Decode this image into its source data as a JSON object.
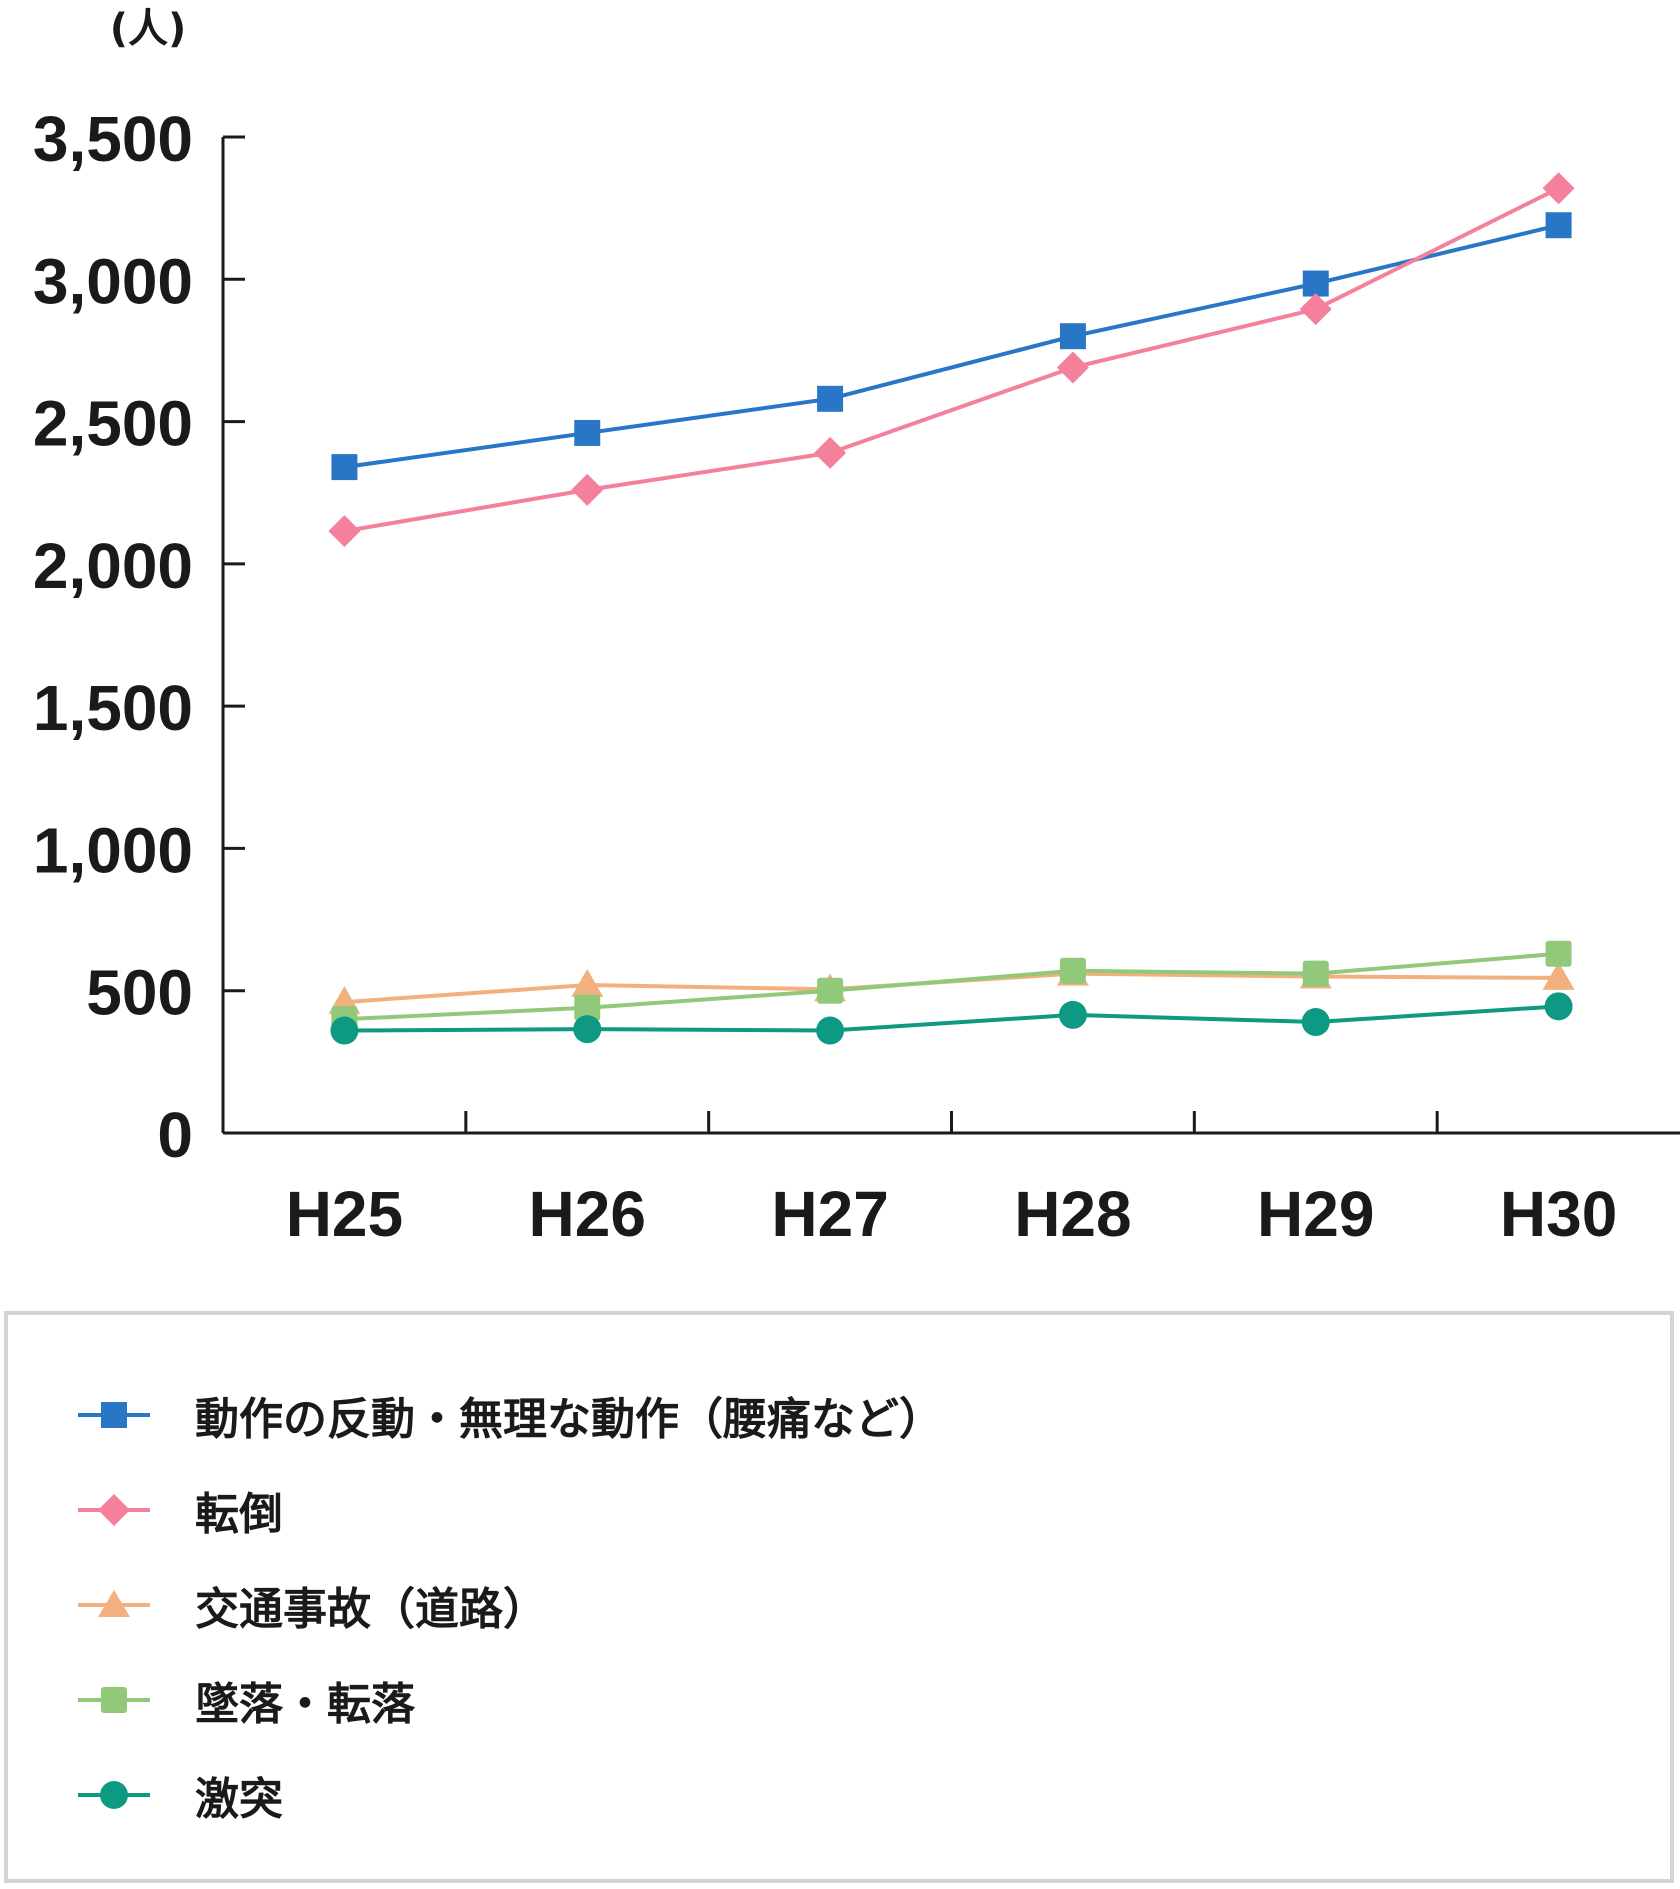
{
  "chart_data": {
    "type": "line",
    "title": "",
    "ylabel": "(人)",
    "xlabel": "",
    "categories": [
      "H25",
      "H26",
      "H27",
      "H28",
      "H29",
      "H30"
    ],
    "ylim": [
      0,
      3500
    ],
    "yticks": [
      0,
      500,
      1000,
      1500,
      2000,
      2500,
      3000,
      3500
    ],
    "ytick_labels": [
      "0",
      "500",
      "1,000",
      "1,500",
      "2,000",
      "2,500",
      "3,000",
      "3,500"
    ],
    "grid": false,
    "legend_position": "bottom",
    "series": [
      {
        "name": "動作の反動・無理な動作（腰痛など）",
        "color": "#2a76c6",
        "marker": "square",
        "values": [
          2340,
          2460,
          2580,
          2800,
          2985,
          3190
        ]
      },
      {
        "name": "転倒",
        "color": "#f4809c",
        "marker": "diamond",
        "values": [
          2115,
          2260,
          2390,
          2690,
          2895,
          3320
        ]
      },
      {
        "name": "交通事故（道路）",
        "color": "#f2b07e",
        "marker": "triangle",
        "values": [
          460,
          520,
          505,
          560,
          550,
          545
        ]
      },
      {
        "name": "墜落・転落",
        "color": "#91c87a",
        "marker": "square",
        "values": [
          400,
          440,
          500,
          570,
          560,
          630
        ]
      },
      {
        "name": "激突",
        "color": "#0e9a82",
        "marker": "circle",
        "values": [
          360,
          365,
          360,
          415,
          390,
          445
        ]
      }
    ]
  }
}
